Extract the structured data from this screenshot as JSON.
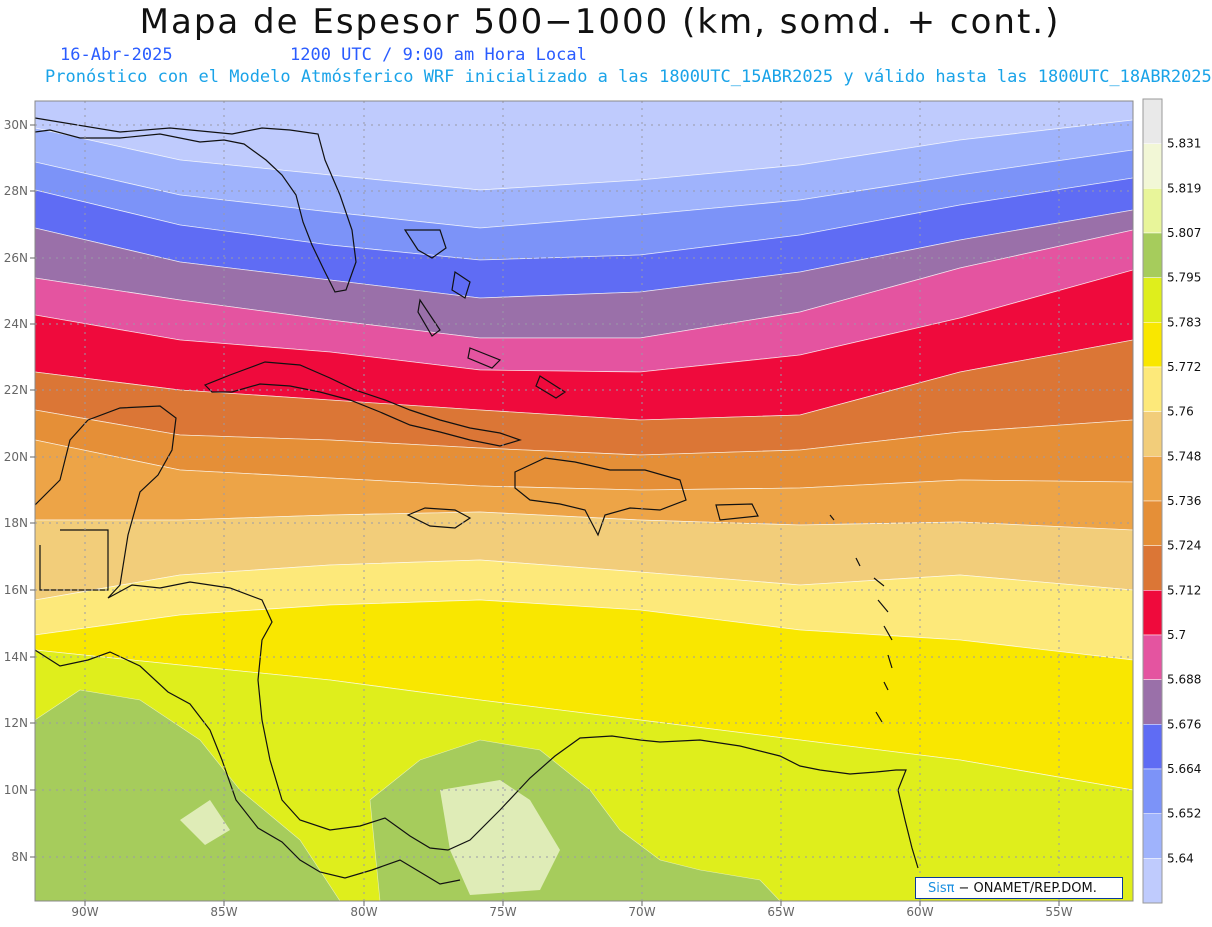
{
  "header": {
    "title": "Mapa de Espesor 500−1000 (km, somd. + cont.)",
    "date": "16-Abr-2025",
    "time": "1200 UTC / 9:00 am Hora Local",
    "info": "Pronóstico con el Modelo Atmósferico WRF inicializado a las 1800UTC_15ABR2025 y válido hasta las  1800UTC_18ABR2025"
  },
  "axes": {
    "lat_labels": [
      "30N",
      "28N",
      "26N",
      "24N",
      "22N",
      "20N",
      "18N",
      "16N",
      "14N",
      "12N",
      "10N",
      "8N"
    ],
    "lon_labels": [
      "90W",
      "85W",
      "80W",
      "75W",
      "70W",
      "65W",
      "60W",
      "55W"
    ]
  },
  "colorbar": {
    "levels": [
      "5.831",
      "5.819",
      "5.807",
      "5.795",
      "5.783",
      "5.772",
      "5.76",
      "5.748",
      "5.736",
      "5.724",
      "5.712",
      "5.7",
      "5.688",
      "5.676",
      "5.664",
      "5.652",
      "5.64"
    ],
    "colors": [
      "#e9e9e9",
      "#f2f7d6",
      "#e8f59a",
      "#a6cc5c",
      "#dfee1c",
      "#f9e700",
      "#fde97a",
      "#f2cd7a",
      "#eda447",
      "#e58f37",
      "#db7636",
      "#ef0a3c",
      "#e454a0",
      "#9a70a9",
      "#5f6cf4",
      "#7c93f8",
      "#9fb3fc",
      "#bfcbfd"
    ]
  },
  "map_bands": [
    "#bfcbfd",
    "#9fb3fc",
    "#7c93f8",
    "#5f6cf4",
    "#9a70a9",
    "#e454a0",
    "#ef0a3c",
    "#db7636",
    "#e58f37",
    "#eda447",
    "#f2cd7a",
    "#fde97a",
    "#f9e700",
    "#dfee1c",
    "#a6cc5c"
  ],
  "footer": {
    "brand": "Sisπ",
    "org": "− ONAMET/REP.DOM."
  }
}
